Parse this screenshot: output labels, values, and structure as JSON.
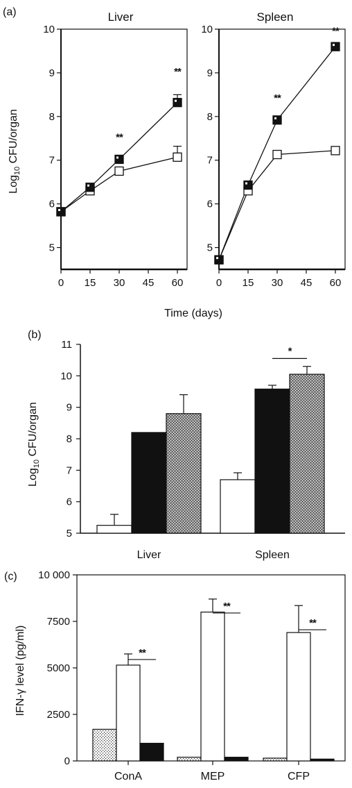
{
  "figure": {
    "panel_a_label": "(a)",
    "panel_b_label": "(b)",
    "panel_c_label": "(c)"
  },
  "chart_data": [
    {
      "panel": "(a)",
      "title": "Liver",
      "type": "line",
      "ylabel": "Log10 CFU/organ",
      "ylabel_main": "Log",
      "ylabel_sub": "10",
      "ylabel_rest": " CFU/organ",
      "x": [
        0,
        15,
        30,
        60
      ],
      "xticks": [
        0,
        15,
        30,
        45,
        60
      ],
      "yticks": [
        5,
        6,
        7,
        8,
        9,
        10
      ],
      "xlim": [
        0,
        65
      ],
      "ylim": [
        4.5,
        10
      ],
      "series": [
        {
          "marker": "filled-square",
          "values": [
            5.82,
            6.38,
            7.02,
            8.32
          ],
          "errors": [
            0,
            0.05,
            0.05,
            0.18
          ]
        },
        {
          "marker": "open-square",
          "values": [
            5.82,
            6.3,
            6.75,
            7.07
          ],
          "errors": [
            0,
            0.05,
            0.08,
            0.25
          ]
        }
      ],
      "annotations": [
        {
          "x": 30,
          "y": 7.45,
          "text": "**"
        },
        {
          "x": 60,
          "y": 8.95,
          "text": "**"
        }
      ]
    },
    {
      "panel": "(a)",
      "title": "Spleen",
      "type": "line",
      "xlabel": "Time (days)",
      "x": [
        0,
        15,
        30,
        60
      ],
      "xticks": [
        0,
        15,
        30,
        45,
        60
      ],
      "yticks": [
        5,
        6,
        7,
        8,
        9,
        10
      ],
      "xlim": [
        0,
        65
      ],
      "ylim": [
        4.5,
        10
      ],
      "series": [
        {
          "marker": "filled-square",
          "values": [
            4.72,
            6.43,
            7.92,
            9.6
          ],
          "errors": [
            0,
            0.05,
            0.07,
            0.07
          ]
        },
        {
          "marker": "open-square",
          "values": [
            4.72,
            6.3,
            7.13,
            7.22
          ],
          "errors": [
            0,
            0.05,
            0.08,
            0.06
          ]
        }
      ],
      "annotations": [
        {
          "x": 30,
          "y": 8.35,
          "text": "**"
        },
        {
          "x": 60,
          "y": 9.88,
          "text": "**"
        }
      ]
    },
    {
      "panel": "(b)",
      "type": "bar",
      "ylabel": "Log10 CFU/organ",
      "ylabel_main": "Log",
      "ylabel_sub": "10",
      "ylabel_rest": " CFU/organ",
      "categories": [
        "Liver",
        "Spleen"
      ],
      "yticks": [
        5,
        6,
        7,
        8,
        9,
        10,
        11
      ],
      "ylim": [
        5,
        11
      ],
      "series": [
        {
          "fill": "white",
          "values": [
            5.25,
            6.7
          ],
          "errors": [
            0.35,
            0.22
          ]
        },
        {
          "fill": "black",
          "values": [
            8.2,
            9.58
          ],
          "errors": [
            0,
            0.12
          ]
        },
        {
          "fill": "stippled",
          "values": [
            8.8,
            10.05
          ],
          "errors": [
            0.6,
            0.25
          ]
        }
      ],
      "annotations": [
        {
          "group": 1,
          "between": [
            1,
            2
          ],
          "y": 10.55,
          "text": "*"
        }
      ]
    },
    {
      "panel": "(c)",
      "type": "bar",
      "ylabel": "IFN-γ level (pg/ml)",
      "categories": [
        "ConA",
        "MEP",
        "CFP"
      ],
      "yticks": [
        0,
        2500,
        5000,
        7500,
        10000
      ],
      "ytick_labels": [
        "0",
        "2500",
        "5000",
        "7500",
        "10 000"
      ],
      "ylim": [
        0,
        10000
      ],
      "series": [
        {
          "fill": "dotted",
          "values": [
            1700,
            200,
            150
          ],
          "errors": [
            0,
            0,
            0
          ]
        },
        {
          "fill": "white",
          "values": [
            5150,
            8000,
            6900
          ],
          "errors": [
            600,
            700,
            1450
          ]
        },
        {
          "fill": "black",
          "values": [
            950,
            200,
            100
          ],
          "errors": [
            0,
            0,
            0
          ]
        }
      ],
      "annotations": [
        {
          "group": 0,
          "between": [
            1,
            2
          ],
          "y": 5450,
          "text": "**"
        },
        {
          "group": 1,
          "between": [
            1,
            2
          ],
          "y": 7950,
          "text": "**"
        },
        {
          "group": 2,
          "between": [
            1,
            2
          ],
          "y": 7050,
          "text": "**"
        }
      ]
    }
  ]
}
